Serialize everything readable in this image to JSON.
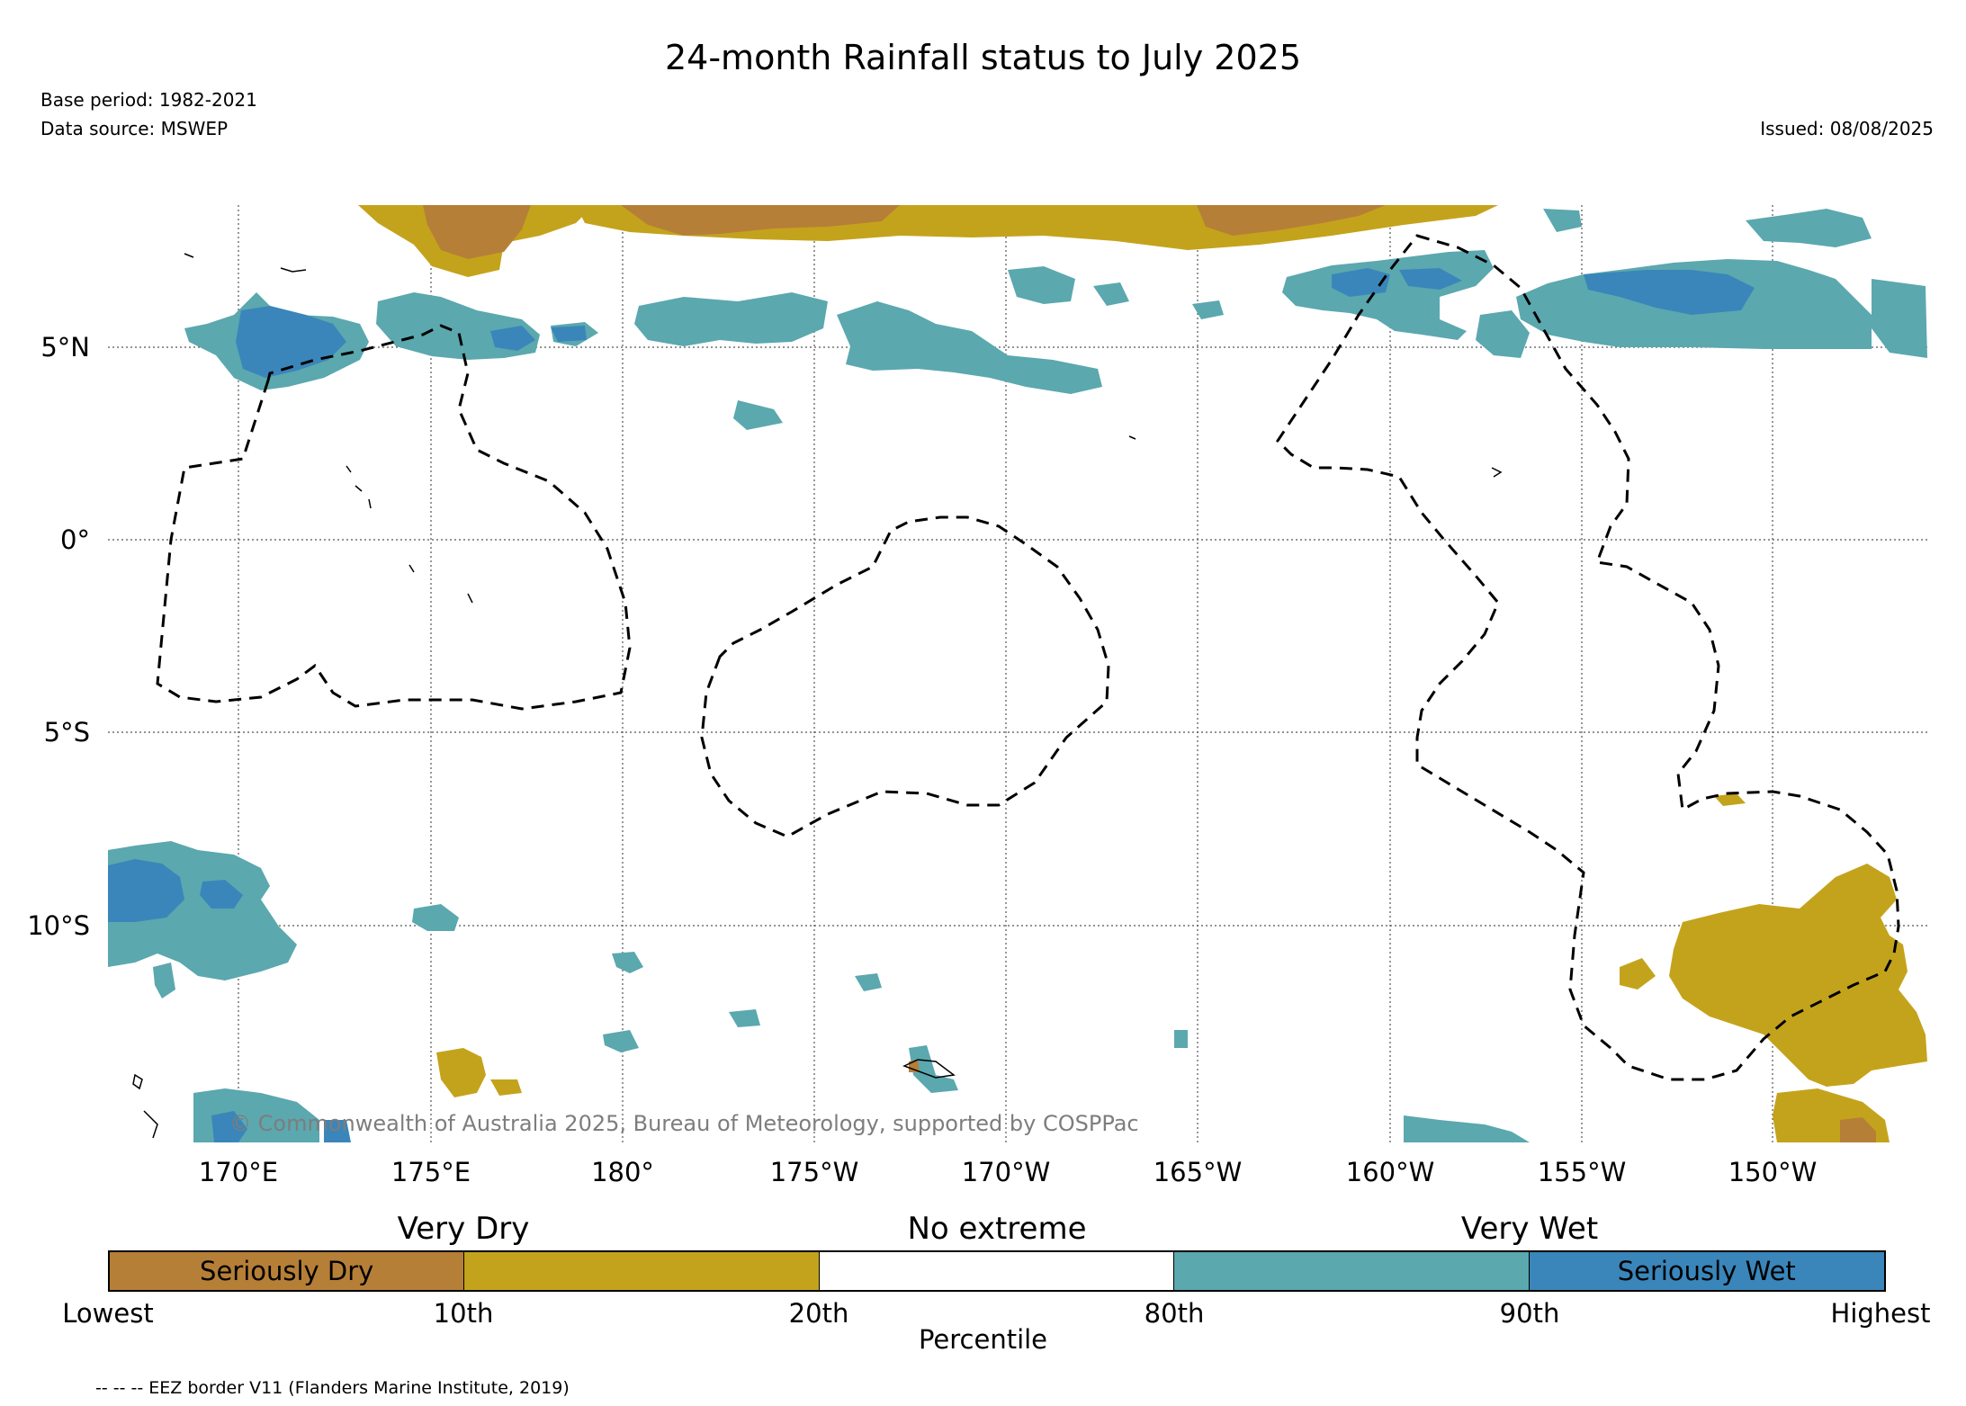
{
  "header": {
    "title": "24-month Rainfall status to July 2025",
    "base_period": "Base period: 1982-2021",
    "data_source": "Data source: MSWEP",
    "issued": "Issued: 08/08/2025"
  },
  "map": {
    "longitude_labels": [
      "170°E",
      "175°E",
      "180°",
      "175°W",
      "170°W",
      "165°W",
      "160°W",
      "155°W",
      "150°W"
    ],
    "latitude_labels": [
      "5°N",
      "0°",
      "5°S",
      "10°S"
    ],
    "copyright": "© Commonwealth of Australia 2025, Bureau of Meteorology, supported by COSPPac",
    "colors": {
      "seriously_dry": "#b67f37",
      "very_dry": "#c4a31c",
      "no_extreme": "#ffffff",
      "very_wet": "#5ba8af",
      "seriously_wet": "#3a86ba",
      "eez_border": "#000000"
    }
  },
  "legend": {
    "category_labels": [
      "Very Dry",
      "No extreme",
      "Very Wet"
    ],
    "segments": [
      {
        "label": "Seriously Dry",
        "color": "#b67f37"
      },
      {
        "label": "",
        "color": "#c4a31c"
      },
      {
        "label": "",
        "color": "#ffffff"
      },
      {
        "label": "",
        "color": "#5ba8af"
      },
      {
        "label": "Seriously Wet",
        "color": "#3a86ba"
      }
    ],
    "tick_labels": [
      "Lowest",
      "10th",
      "20th",
      "80th",
      "90th",
      "Highest"
    ],
    "axis_title": "Percentile"
  },
  "footnote": "-- -- -- EEZ border V11 (Flanders Marine Institute, 2019)"
}
